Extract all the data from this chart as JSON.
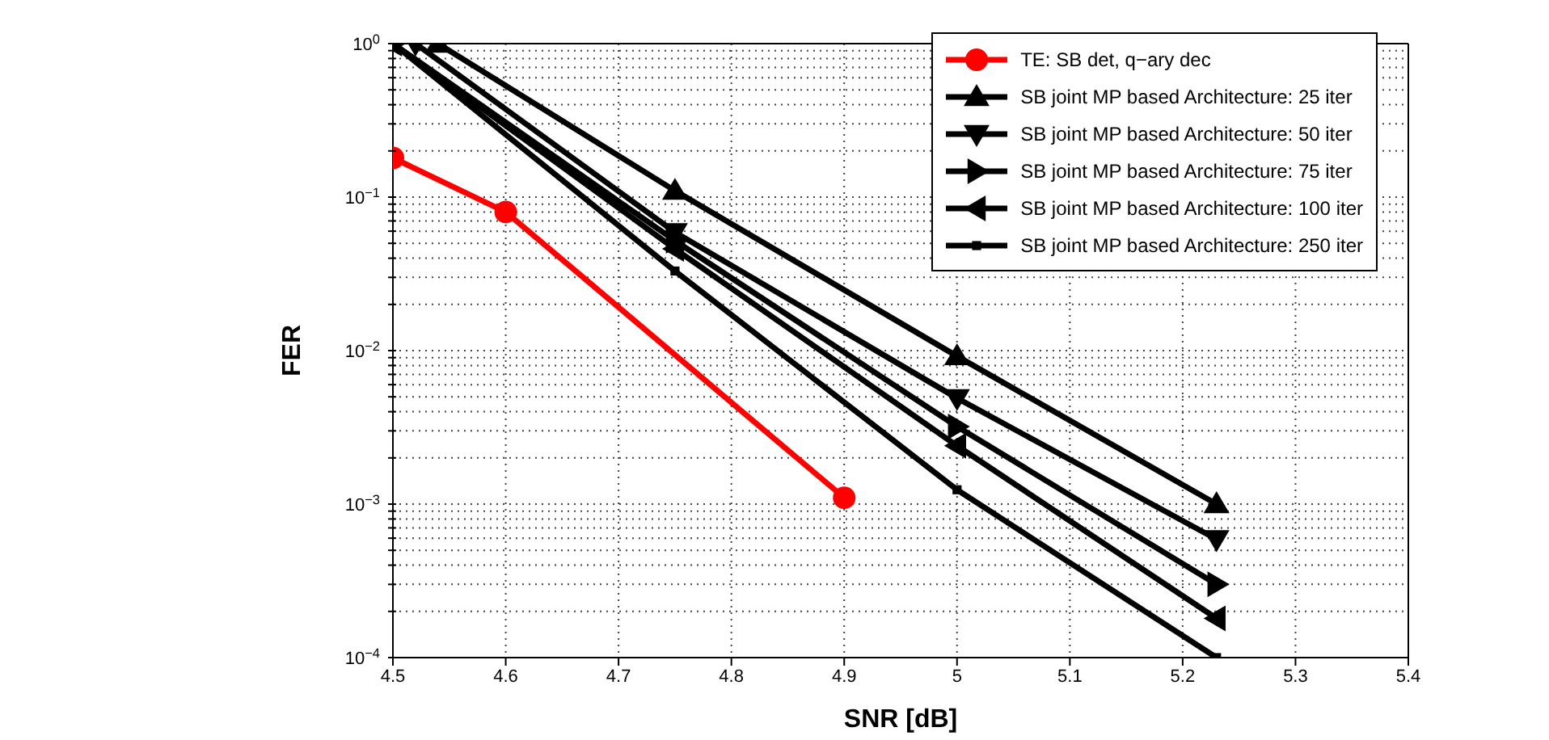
{
  "chart_data": {
    "type": "line",
    "xlabel": "SNR [dB]",
    "ylabel": "FER",
    "log": "y",
    "grid": true,
    "legend": "top right",
    "line_style": "solid",
    "xlim": [
      4.5,
      5.4
    ],
    "xticks": [
      4.5,
      4.6,
      4.7,
      4.8,
      4.9,
      5,
      5.1,
      5.2,
      5.3,
      5.4
    ],
    "ylim": [
      0.0001,
      1
    ],
    "yticks": [
      {
        "value": 0.0001,
        "label": "10$^{−4}$"
      },
      {
        "value": 0.0002,
        "label": null
      },
      {
        "value": 0.0003,
        "label": null
      },
      {
        "value": 0.0004,
        "label": null
      },
      {
        "value": 0.0005,
        "label": null
      },
      {
        "value": 0.0006,
        "label": null
      },
      {
        "value": 0.0007,
        "label": null
      },
      {
        "value": 0.0008,
        "label": null
      },
      {
        "value": 0.0009,
        "label": null
      },
      {
        "value": 0.001,
        "label": "10$^{−3}$"
      },
      {
        "value": 0.002,
        "label": null
      },
      {
        "value": 0.003,
        "label": null
      },
      {
        "value": 0.004,
        "label": null
      },
      {
        "value": 0.005,
        "label": null
      },
      {
        "value": 0.006,
        "label": null
      },
      {
        "value": 0.007,
        "label": null
      },
      {
        "value": 0.008,
        "label": null
      },
      {
        "value": 0.009,
        "label": null
      },
      {
        "value": 0.01,
        "label": "10$^{−2}$"
      },
      {
        "value": 0.02,
        "label": null
      },
      {
        "value": 0.03,
        "label": null
      },
      {
        "value": 0.04,
        "label": null
      },
      {
        "value": 0.05,
        "label": null
      },
      {
        "value": 0.06,
        "label": null
      },
      {
        "value": 0.07,
        "label": null
      },
      {
        "value": 0.08,
        "label": null
      },
      {
        "value": 0.09,
        "label": null
      },
      {
        "value": 0.1,
        "label": "10$^{−1}$"
      },
      {
        "value": 0.2,
        "label": null
      },
      {
        "value": 0.3,
        "label": null
      },
      {
        "value": 0.4,
        "label": null
      },
      {
        "value": 0.5,
        "label": null
      },
      {
        "value": 0.6,
        "label": null
      },
      {
        "value": 0.7,
        "label": null
      },
      {
        "value": 0.8,
        "label": null
      },
      {
        "value": 0.9,
        "label": null
      },
      {
        "value": 1,
        "label": "10$^{0}$"
      }
    ],
    "series": [
      {
        "name": "TE: SB det, q−ary dec",
        "color": "#ff0000",
        "marker": "circle",
        "x": [
          4.5,
          4.6,
          4.9
        ],
        "values": [
          0.18,
          0.08,
          0.0011
        ]
      },
      {
        "name": "SB joint MP based Architecture: 25 iter",
        "color": "#000000",
        "marker": "triangle",
        "x": [
          4.54,
          4.75,
          5,
          5.23
        ],
        "values": [
          1,
          0.11,
          0.0092,
          0.001
        ]
      },
      {
        "name": "SB joint MP based Architecture: 50 iter",
        "color": "#000000",
        "marker": "triangle-down",
        "x": [
          4.52,
          4.75,
          5,
          5.23
        ],
        "values": [
          1,
          0.059,
          0.0049,
          0.00059
        ]
      },
      {
        "name": "SB joint MP based Architecture: 75 iter",
        "color": "#000000",
        "marker": "triangle-right",
        "x": [
          4.5,
          4.75,
          5,
          5.23
        ],
        "values": [
          1,
          0.052,
          0.0032,
          0.0003
        ]
      },
      {
        "name": "SB joint MP based Architecture: 100 iter",
        "color": "#000000",
        "marker": "triangle-left",
        "x": [
          4.5,
          4.75,
          5,
          5.23
        ],
        "values": [
          1,
          0.046,
          0.0024,
          0.00018
        ]
      },
      {
        "name": "SB joint MP based Architecture: 250 iter",
        "color": "#000000",
        "marker": "square",
        "x": [
          4.5,
          4.75,
          5,
          5.23
        ],
        "values": [
          1,
          0.033,
          0.00124,
          0.0001
        ]
      }
    ]
  }
}
